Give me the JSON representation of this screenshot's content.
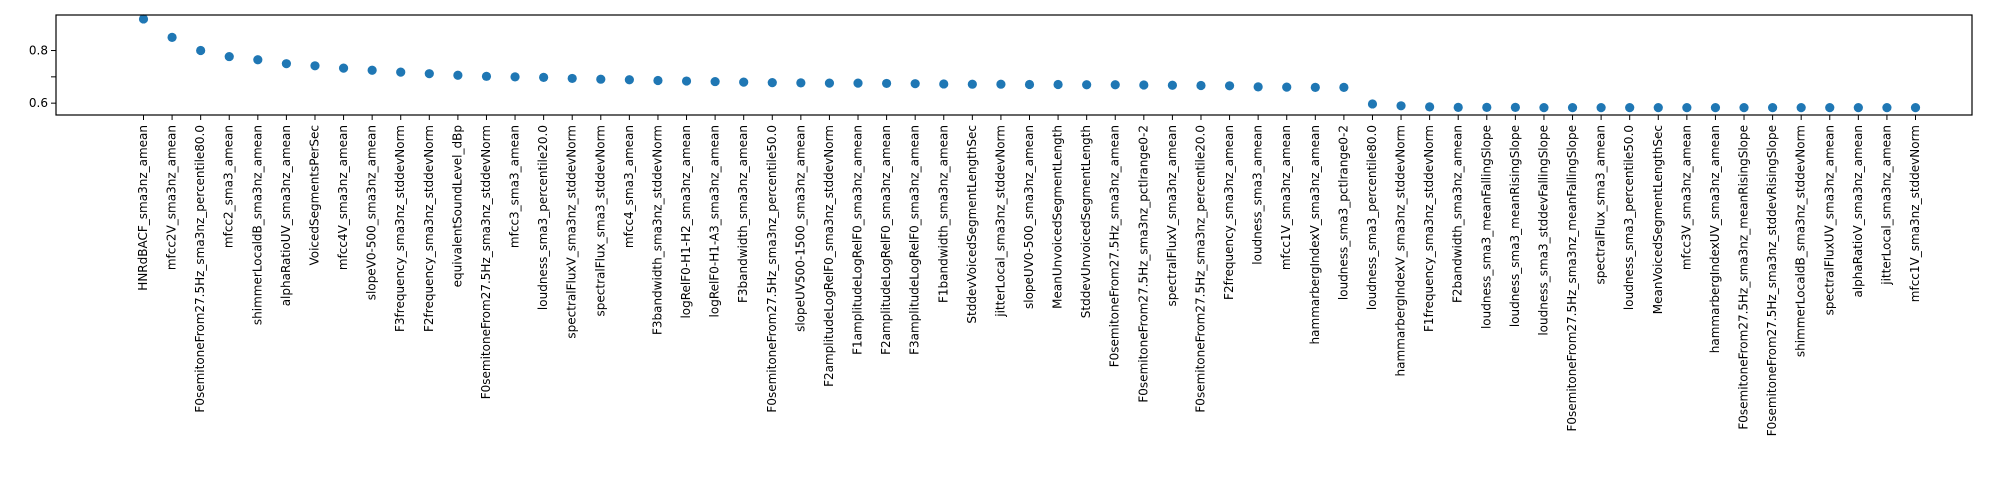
{
  "chart_data": {
    "type": "scatter",
    "title": "",
    "xlabel": "",
    "ylabel": "",
    "grid": false,
    "legend": false,
    "color": "#1f77b4",
    "ylim": [
      0.555,
      0.935
    ],
    "y_ticks": [
      {
        "value": 0.6,
        "label": "0.6"
      },
      {
        "value": 0.7,
        "label": ""
      },
      {
        "value": 0.8,
        "label": "0.8"
      }
    ],
    "categories": [
      "HNRdBACF_sma3nz_amean",
      "mfcc2V_sma3nz_amean",
      "F0semitoneFrom27.5Hz_sma3nz_percentile80.0",
      "mfcc2_sma3_amean",
      "shimmerLocaldB_sma3nz_amean",
      "alphaRatioUV_sma3nz_amean",
      "VoicedSegmentsPerSec",
      "mfcc4V_sma3nz_amean",
      "slopeV0-500_sma3nz_amean",
      "F3frequency_sma3nz_stddevNorm",
      "F2frequency_sma3nz_stddevNorm",
      "equivalentSoundLevel_dBp",
      "F0semitoneFrom27.5Hz_sma3nz_stddevNorm",
      "mfcc3_sma3_amean",
      "loudness_sma3_percentile20.0",
      "spectralFluxV_sma3nz_stddevNorm",
      "spectralFlux_sma3_stddevNorm",
      "mfcc4_sma3_amean",
      "F3bandwidth_sma3nz_stddevNorm",
      "logRelF0-H1-H2_sma3nz_amean",
      "logRelF0-H1-A3_sma3nz_amean",
      "F3bandwidth_sma3nz_amean",
      "F0semitoneFrom27.5Hz_sma3nz_percentile50.0",
      "slopeUV500-1500_sma3nz_amean",
      "F2amplitudeLogRelF0_sma3nz_stddevNorm",
      "F1amplitudeLogRelF0_sma3nz_amean",
      "F2amplitudeLogRelF0_sma3nz_amean",
      "F3amplitudeLogRelF0_sma3nz_amean",
      "F1bandwidth_sma3nz_amean",
      "StddevVoicedSegmentLengthSec",
      "jitterLocal_sma3nz_stddevNorm",
      "slopeUV0-500_sma3nz_amean",
      "MeanUnvoicedSegmentLength",
      "StddevUnvoicedSegmentLength",
      "F0semitoneFrom27.5Hz_sma3nz_amean",
      "F0semitoneFrom27.5Hz_sma3nz_pctlrange0-2",
      "spectralFluxV_sma3nz_amean",
      "F0semitoneFrom27.5Hz_sma3nz_percentile20.0",
      "F2frequency_sma3nz_amean",
      "loudness_sma3_amean",
      "mfcc1V_sma3nz_amean",
      "hammarbergIndexV_sma3nz_amean",
      "loudness_sma3_pctlrange0-2",
      "loudness_sma3_percentile80.0",
      "hammarbergIndexV_sma3nz_stddevNorm",
      "F1frequency_sma3nz_stddevNorm",
      "F2bandwidth_sma3nz_amean",
      "loudness_sma3_meanFallingSlope",
      "loudness_sma3_meanRisingSlope",
      "loudness_sma3_stddevFallingSlope",
      "F0semitoneFrom27.5Hz_sma3nz_meanFallingSlope",
      "spectralFlux_sma3_amean",
      "loudness_sma3_percentile50.0",
      "MeanVoicedSegmentLengthSec",
      "mfcc3V_sma3nz_amean",
      "hammarbergIndexUV_sma3nz_amean",
      "F0semitoneFrom27.5Hz_sma3nz_meanRisingSlope",
      "F0semitoneFrom27.5Hz_sma3nz_stddevRisingSlope",
      "shimmerLocaldB_sma3nz_stddevNorm",
      "spectralFluxUV_sma3nz_amean",
      "alphaRatioV_sma3nz_amean",
      "jitterLocal_sma3nz_amean",
      "mfcc1V_sma3nz_stddevNorm"
    ],
    "values": [
      0.92,
      0.85,
      0.8,
      0.777,
      0.765,
      0.75,
      0.742,
      0.733,
      0.725,
      0.718,
      0.712,
      0.706,
      0.702,
      0.7,
      0.698,
      0.694,
      0.691,
      0.689,
      0.686,
      0.684,
      0.682,
      0.68,
      0.678,
      0.677,
      0.676,
      0.676,
      0.675,
      0.674,
      0.673,
      0.672,
      0.672,
      0.671,
      0.671,
      0.67,
      0.67,
      0.669,
      0.668,
      0.667,
      0.666,
      0.662,
      0.661,
      0.66,
      0.66,
      0.597,
      0.59,
      0.586,
      0.584,
      0.584,
      0.584,
      0.583,
      0.583,
      0.583,
      0.583,
      0.583,
      0.583,
      0.583,
      0.583,
      0.583,
      0.583,
      0.583,
      0.583,
      0.583,
      0.583
    ]
  }
}
